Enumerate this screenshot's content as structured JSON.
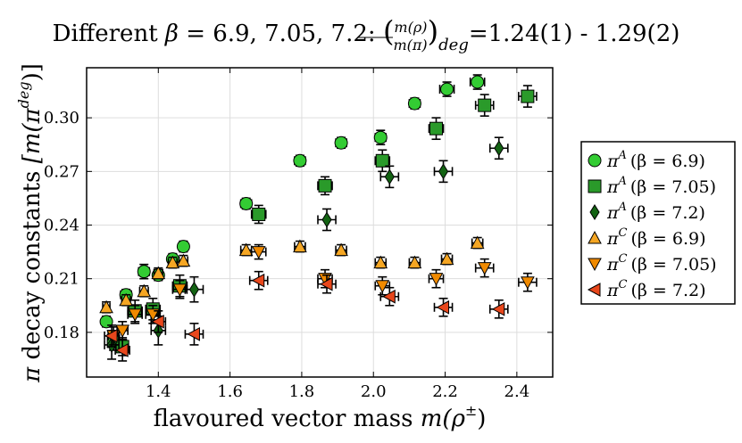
{
  "chart_data": {
    "type": "scatter",
    "title": "Different β = 6.9, 7.05, 7.2: (m(ρ)/m(π))_deg = 1.24(1) - 1.29(2)",
    "title_parts": {
      "prefix": "Different ",
      "beta_symbol": "β",
      "beta_values": " = 6.9, 7.05, 7.2: ",
      "ratio_num": "m(ρ)",
      "ratio_den": "m(π)",
      "ratio_sub": "deg",
      "ratio_value": "=1.24(1) - 1.29(2)"
    },
    "xlabel": "flavoured vector mass m(ρ±)",
    "xlabel_parts": {
      "text": "flavoured vector mass ",
      "math": "m(ρ",
      "sup": "±",
      "close": ")"
    },
    "ylabel": "π decay constants [m(π^deg)]",
    "ylabel_parts": {
      "pi": "π",
      "text": " decay constants ",
      "math": "[m(π",
      "sup": "deg",
      "close": ")]"
    },
    "xlim": [
      1.2,
      2.5
    ],
    "ylim": [
      0.155,
      0.328
    ],
    "xticks": [
      1.4,
      1.6,
      1.8,
      2.0,
      2.2,
      2.4
    ],
    "xtick_labels": [
      "1.4",
      "1.6",
      "1.8",
      "2.0",
      "2.2",
      "2.4"
    ],
    "yticks": [
      0.18,
      0.21,
      0.24,
      0.27,
      0.3
    ],
    "ytick_labels": [
      "0.18",
      "0.21",
      "0.24",
      "0.27",
      "0.30"
    ],
    "grid": true,
    "legend_position": "right",
    "series": [
      {
        "name": "π^A (β = 6.9)",
        "label_pi": "π",
        "label_sup": "A",
        "label_beta": "(β = 6.9)",
        "marker": "circle",
        "color": "#33cc33",
        "points": [
          {
            "x": 1.255,
            "y": 0.186,
            "ex": 0.01,
            "ey": 0.003
          },
          {
            "x": 1.31,
            "y": 0.201,
            "ex": 0.015,
            "ey": 0.003
          },
          {
            "x": 1.36,
            "y": 0.214,
            "ex": 0.015,
            "ey": 0.004
          },
          {
            "x": 1.4,
            "y": 0.212,
            "ex": 0.012,
            "ey": 0.003
          },
          {
            "x": 1.44,
            "y": 0.221,
            "ex": 0.012,
            "ey": 0.003
          },
          {
            "x": 1.47,
            "y": 0.228,
            "ex": 0.012,
            "ey": 0.003
          },
          {
            "x": 1.645,
            "y": 0.252,
            "ex": 0.015,
            "ey": 0.003
          },
          {
            "x": 1.795,
            "y": 0.276,
            "ex": 0.015,
            "ey": 0.003
          },
          {
            "x": 1.91,
            "y": 0.286,
            "ex": 0.015,
            "ey": 0.003
          },
          {
            "x": 2.02,
            "y": 0.289,
            "ex": 0.015,
            "ey": 0.004
          },
          {
            "x": 2.115,
            "y": 0.308,
            "ex": 0.015,
            "ey": 0.003
          },
          {
            "x": 2.205,
            "y": 0.316,
            "ex": 0.02,
            "ey": 0.004
          },
          {
            "x": 2.29,
            "y": 0.32,
            "ex": 0.02,
            "ey": 0.004
          }
        ]
      },
      {
        "name": "π^A (β = 7.05)",
        "label_pi": "π",
        "label_sup": "A",
        "label_beta": "(β = 7.05)",
        "marker": "square",
        "color": "#2a9a2a",
        "points": [
          {
            "x": 1.275,
            "y": 0.175,
            "ex": 0.015,
            "ey": 0.005
          },
          {
            "x": 1.3,
            "y": 0.172,
            "ex": 0.015,
            "ey": 0.005
          },
          {
            "x": 1.335,
            "y": 0.192,
            "ex": 0.02,
            "ey": 0.006
          },
          {
            "x": 1.385,
            "y": 0.193,
            "ex": 0.02,
            "ey": 0.006
          },
          {
            "x": 1.46,
            "y": 0.206,
            "ex": 0.02,
            "ey": 0.006
          },
          {
            "x": 1.68,
            "y": 0.246,
            "ex": 0.02,
            "ey": 0.005
          },
          {
            "x": 1.865,
            "y": 0.262,
            "ex": 0.02,
            "ey": 0.005
          },
          {
            "x": 2.025,
            "y": 0.276,
            "ex": 0.02,
            "ey": 0.006
          },
          {
            "x": 2.175,
            "y": 0.294,
            "ex": 0.02,
            "ey": 0.006
          },
          {
            "x": 2.31,
            "y": 0.307,
            "ex": 0.025,
            "ey": 0.006
          },
          {
            "x": 2.43,
            "y": 0.312,
            "ex": 0.025,
            "ey": 0.006
          }
        ]
      },
      {
        "name": "π^A (β = 7.2)",
        "label_pi": "π",
        "label_sup": "A",
        "label_beta": "(β = 7.2)",
        "marker": "diamond",
        "color": "#136313",
        "points": [
          {
            "x": 1.27,
            "y": 0.173,
            "ex": 0.02,
            "ey": 0.008
          },
          {
            "x": 1.4,
            "y": 0.181,
            "ex": 0.02,
            "ey": 0.008
          },
          {
            "x": 1.5,
            "y": 0.204,
            "ex": 0.025,
            "ey": 0.007
          },
          {
            "x": 1.87,
            "y": 0.243,
            "ex": 0.025,
            "ey": 0.006
          },
          {
            "x": 2.045,
            "y": 0.267,
            "ex": 0.025,
            "ey": 0.006
          },
          {
            "x": 2.195,
            "y": 0.27,
            "ex": 0.025,
            "ey": 0.006
          },
          {
            "x": 2.35,
            "y": 0.283,
            "ex": 0.025,
            "ey": 0.006
          }
        ]
      },
      {
        "name": "π^C (β = 6.9)",
        "label_pi": "π",
        "label_sup": "C",
        "label_beta": "(β = 6.9)",
        "marker": "triangle-up",
        "color": "#f5a623",
        "points": [
          {
            "x": 1.255,
            "y": 0.194,
            "ex": 0.01,
            "ey": 0.003
          },
          {
            "x": 1.31,
            "y": 0.198,
            "ex": 0.012,
            "ey": 0.003
          },
          {
            "x": 1.36,
            "y": 0.203,
            "ex": 0.012,
            "ey": 0.003
          },
          {
            "x": 1.4,
            "y": 0.213,
            "ex": 0.012,
            "ey": 0.003
          },
          {
            "x": 1.44,
            "y": 0.219,
            "ex": 0.012,
            "ey": 0.003
          },
          {
            "x": 1.47,
            "y": 0.22,
            "ex": 0.012,
            "ey": 0.003
          },
          {
            "x": 1.645,
            "y": 0.226,
            "ex": 0.015,
            "ey": 0.003
          },
          {
            "x": 1.795,
            "y": 0.228,
            "ex": 0.015,
            "ey": 0.003
          },
          {
            "x": 1.91,
            "y": 0.226,
            "ex": 0.015,
            "ey": 0.003
          },
          {
            "x": 2.02,
            "y": 0.219,
            "ex": 0.015,
            "ey": 0.003
          },
          {
            "x": 2.115,
            "y": 0.219,
            "ex": 0.015,
            "ey": 0.003
          },
          {
            "x": 2.205,
            "y": 0.221,
            "ex": 0.015,
            "ey": 0.003
          },
          {
            "x": 2.29,
            "y": 0.23,
            "ex": 0.015,
            "ey": 0.003
          }
        ]
      },
      {
        "name": "π^C (β = 7.05)",
        "label_pi": "π",
        "label_sup": "C",
        "label_beta": "(β = 7.05)",
        "marker": "triangle-down",
        "color": "#f08a00",
        "points": [
          {
            "x": 1.275,
            "y": 0.178,
            "ex": 0.015,
            "ey": 0.005
          },
          {
            "x": 1.3,
            "y": 0.181,
            "ex": 0.015,
            "ey": 0.005
          },
          {
            "x": 1.335,
            "y": 0.19,
            "ex": 0.02,
            "ey": 0.005
          },
          {
            "x": 1.385,
            "y": 0.19,
            "ex": 0.02,
            "ey": 0.005
          },
          {
            "x": 1.46,
            "y": 0.204,
            "ex": 0.02,
            "ey": 0.005
          },
          {
            "x": 1.68,
            "y": 0.225,
            "ex": 0.02,
            "ey": 0.004
          },
          {
            "x": 1.865,
            "y": 0.21,
            "ex": 0.02,
            "ey": 0.005
          },
          {
            "x": 2.025,
            "y": 0.206,
            "ex": 0.02,
            "ey": 0.005
          },
          {
            "x": 2.175,
            "y": 0.21,
            "ex": 0.02,
            "ey": 0.005
          },
          {
            "x": 2.31,
            "y": 0.216,
            "ex": 0.025,
            "ey": 0.005
          },
          {
            "x": 2.43,
            "y": 0.208,
            "ex": 0.025,
            "ey": 0.005
          }
        ]
      },
      {
        "name": "π^C (β = 7.2)",
        "label_pi": "π",
        "label_sup": "C",
        "label_beta": "(β = 7.2)",
        "marker": "triangle-left",
        "color": "#e8471c",
        "points": [
          {
            "x": 1.27,
            "y": 0.178,
            "ex": 0.02,
            "ey": 0.006
          },
          {
            "x": 1.3,
            "y": 0.17,
            "ex": 0.02,
            "ey": 0.006
          },
          {
            "x": 1.4,
            "y": 0.186,
            "ex": 0.02,
            "ey": 0.006
          },
          {
            "x": 1.5,
            "y": 0.179,
            "ex": 0.025,
            "ey": 0.006
          },
          {
            "x": 1.68,
            "y": 0.209,
            "ex": 0.025,
            "ey": 0.005
          },
          {
            "x": 1.87,
            "y": 0.207,
            "ex": 0.025,
            "ey": 0.005
          },
          {
            "x": 2.045,
            "y": 0.2,
            "ex": 0.025,
            "ey": 0.005
          },
          {
            "x": 2.195,
            "y": 0.194,
            "ex": 0.025,
            "ey": 0.005
          },
          {
            "x": 2.35,
            "y": 0.193,
            "ex": 0.025,
            "ey": 0.005
          }
        ]
      }
    ]
  }
}
